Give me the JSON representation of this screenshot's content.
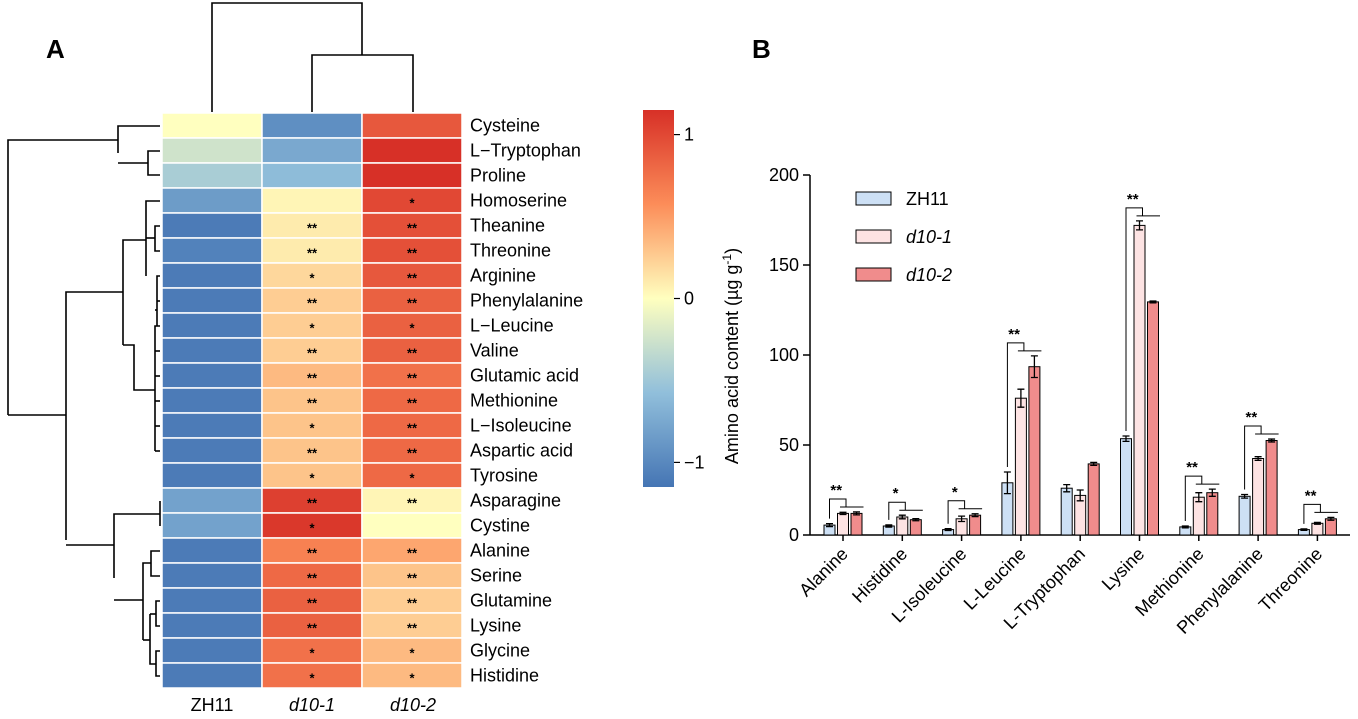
{
  "panels": {
    "left": "A",
    "right": "B"
  },
  "heatmap": {
    "columns": [
      "ZH11",
      "d10-1",
      "d10-2"
    ],
    "rows": [
      {
        "name": "Cysteine",
        "values": [
          0.0,
          -0.95,
          0.9
        ],
        "stars": [
          "",
          "",
          ""
        ]
      },
      {
        "name": "L−Tryptophan",
        "values": [
          -0.25,
          -0.75,
          1.15
        ],
        "stars": [
          "",
          "",
          ""
        ]
      },
      {
        "name": "Proline",
        "values": [
          -0.45,
          -0.6,
          1.15
        ],
        "stars": [
          "",
          "",
          ""
        ]
      },
      {
        "name": "Homoserine",
        "values": [
          -0.85,
          0.05,
          1.0
        ],
        "stars": [
          "",
          "",
          "*"
        ]
      },
      {
        "name": "Theanine",
        "values": [
          -1.1,
          0.1,
          0.95
        ],
        "stars": [
          "",
          "**",
          "**"
        ]
      },
      {
        "name": "Threonine",
        "values": [
          -1.05,
          0.1,
          0.95
        ],
        "stars": [
          "",
          "**",
          "**"
        ]
      },
      {
        "name": "Arginine",
        "values": [
          -1.1,
          0.2,
          0.9
        ],
        "stars": [
          "",
          "*",
          "**"
        ]
      },
      {
        "name": "Phenylalanine",
        "values": [
          -1.1,
          0.25,
          0.85
        ],
        "stars": [
          "",
          "**",
          "**"
        ]
      },
      {
        "name": "L−Leucine",
        "values": [
          -1.1,
          0.25,
          0.85
        ],
        "stars": [
          "",
          "*",
          "*"
        ]
      },
      {
        "name": "Valine",
        "values": [
          -1.1,
          0.25,
          0.85
        ],
        "stars": [
          "",
          "**",
          "**"
        ]
      },
      {
        "name": "Glutamic acid",
        "values": [
          -1.1,
          0.35,
          0.75
        ],
        "stars": [
          "",
          "**",
          "**"
        ]
      },
      {
        "name": "Methionine",
        "values": [
          -1.1,
          0.3,
          0.8
        ],
        "stars": [
          "",
          "**",
          "**"
        ]
      },
      {
        "name": "L−Isoleucine",
        "values": [
          -1.1,
          0.3,
          0.8
        ],
        "stars": [
          "",
          "*",
          "**"
        ]
      },
      {
        "name": "Aspartic acid",
        "values": [
          -1.1,
          0.3,
          0.8
        ],
        "stars": [
          "",
          "**",
          "**"
        ]
      },
      {
        "name": "Tyrosine",
        "values": [
          -1.1,
          0.3,
          0.8
        ],
        "stars": [
          "",
          "*",
          "*"
        ]
      },
      {
        "name": "Asparagine",
        "values": [
          -0.8,
          1.05,
          0.05
        ],
        "stars": [
          "",
          "**",
          "**"
        ]
      },
      {
        "name": "Cystine",
        "values": [
          -0.8,
          1.1,
          0.0
        ],
        "stars": [
          "",
          "*",
          ""
        ]
      },
      {
        "name": "Alanine",
        "values": [
          -1.1,
          0.65,
          0.45
        ],
        "stars": [
          "",
          "**",
          "**"
        ]
      },
      {
        "name": "Serine",
        "values": [
          -1.1,
          0.8,
          0.3
        ],
        "stars": [
          "",
          "**",
          "**"
        ]
      },
      {
        "name": "Glutamine",
        "values": [
          -1.1,
          0.85,
          0.25
        ],
        "stars": [
          "",
          "**",
          "**"
        ]
      },
      {
        "name": "Lysine",
        "values": [
          -1.1,
          0.85,
          0.25
        ],
        "stars": [
          "",
          "**",
          "**"
        ]
      },
      {
        "name": "Glycine",
        "values": [
          -1.1,
          0.75,
          0.35
        ],
        "stars": [
          "",
          "*",
          "*"
        ]
      },
      {
        "name": "Histidine",
        "values": [
          -1.1,
          0.75,
          0.35
        ],
        "stars": [
          "",
          "*",
          "*"
        ]
      }
    ],
    "colorbar": {
      "ticks": [
        1,
        0,
        -1
      ],
      "tick_labels": [
        "1",
        "0",
        "−1"
      ],
      "range": [
        -1.15,
        1.15
      ]
    },
    "colors": {
      "low": "#4575b4",
      "mid": "#ffffbf",
      "high": "#d73027"
    }
  },
  "chart_data": {
    "type": "bar",
    "ylabel": "Amino acid content (µg g",
    "ylabel_sup": "-1",
    "ylabel_end": ")",
    "ylim": [
      0,
      200
    ],
    "yticks": [
      0,
      50,
      100,
      150,
      200
    ],
    "categories": [
      "Alanine",
      "Histidine",
      "L-Isoleucine",
      "L-Leucine",
      "L-Tryptophan",
      "Lysine",
      "Methionine",
      "Phenylalanine",
      "Threonine"
    ],
    "series": [
      {
        "name": "ZH11",
        "color": "#cde0f5",
        "values": [
          5.5,
          5,
          3,
          29,
          26,
          53.5,
          4.5,
          21.5,
          3
        ],
        "errors": [
          0.8,
          0.6,
          0.5,
          6,
          2,
          1.5,
          0.5,
          1,
          0.4
        ]
      },
      {
        "name": "d10-1",
        "color": "#fde3e3",
        "values": [
          12,
          10,
          9,
          76,
          22,
          172,
          21,
          42.5,
          6.5
        ],
        "errors": [
          0.6,
          1,
          1.5,
          5,
          3,
          2.5,
          2.5,
          1,
          0.5
        ]
      },
      {
        "name": "d10-2",
        "color": "#f08c8c",
        "values": [
          12,
          8.5,
          11,
          93.5,
          39.5,
          129.5,
          23.5,
          52.5,
          9
        ],
        "errors": [
          0.8,
          0.6,
          0.8,
          6,
          0.8,
          0.5,
          2,
          0.8,
          0.8
        ]
      }
    ],
    "significance": [
      "**",
      "*",
      "*",
      "**",
      "",
      "**",
      "**",
      "**",
      "**"
    ],
    "legend_position": "top-left"
  }
}
